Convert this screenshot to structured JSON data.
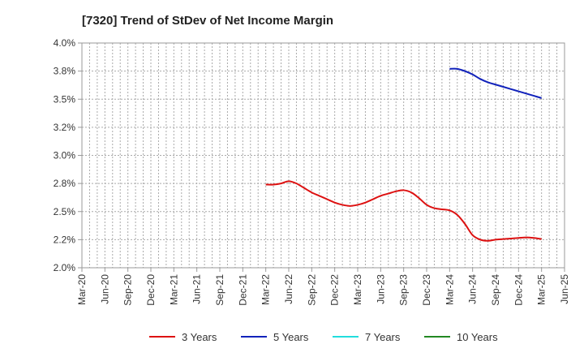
{
  "chart_data": {
    "type": "line",
    "title": "[7320]  Trend of StDev of Net Income Margin",
    "xlabel": "",
    "ylabel": "",
    "x_ticks": [
      "Mar-20",
      "Jun-20",
      "Sep-20",
      "Dec-20",
      "Mar-21",
      "Jun-21",
      "Sep-21",
      "Dec-21",
      "Mar-22",
      "Jun-22",
      "Sep-22",
      "Dec-22",
      "Mar-23",
      "Jun-23",
      "Sep-23",
      "Dec-23",
      "Mar-24",
      "Jun-24",
      "Sep-24",
      "Dec-24",
      "Mar-25",
      "Jun-25"
    ],
    "y_ticks": [
      "2.0%",
      "2.2%",
      "2.5%",
      "2.8%",
      "3.0%",
      "3.2%",
      "3.5%",
      "3.8%",
      "4.0%"
    ],
    "ylim": [
      2.0,
      4.0
    ],
    "grid": true,
    "legend_position": "bottom",
    "series": [
      {
        "name": "3 Years",
        "color": "#dd1111",
        "points": [
          [
            "Mar-22",
            2.74
          ],
          [
            "Apr-22",
            2.74
          ],
          [
            "May-22",
            2.75
          ],
          [
            "Jun-22",
            2.77
          ],
          [
            "Jul-22",
            2.75
          ],
          [
            "Aug-22",
            2.71
          ],
          [
            "Sep-22",
            2.67
          ],
          [
            "Oct-22",
            2.64
          ],
          [
            "Nov-22",
            2.61
          ],
          [
            "Dec-22",
            2.58
          ],
          [
            "Jan-23",
            2.56
          ],
          [
            "Feb-23",
            2.55
          ],
          [
            "Mar-23",
            2.56
          ],
          [
            "Apr-23",
            2.58
          ],
          [
            "May-23",
            2.61
          ],
          [
            "Jun-23",
            2.64
          ],
          [
            "Jul-23",
            2.66
          ],
          [
            "Aug-23",
            2.68
          ],
          [
            "Sep-23",
            2.69
          ],
          [
            "Oct-23",
            2.67
          ],
          [
            "Nov-23",
            2.62
          ],
          [
            "Dec-23",
            2.56
          ],
          [
            "Jan-24",
            2.53
          ],
          [
            "Feb-24",
            2.52
          ],
          [
            "Mar-24",
            2.51
          ],
          [
            "Apr-24",
            2.47
          ],
          [
            "May-24",
            2.39
          ],
          [
            "Jun-24",
            2.29
          ],
          [
            "Jul-24",
            2.25
          ],
          [
            "Aug-24",
            2.24
          ],
          [
            "Sep-24",
            2.25
          ],
          [
            "Oct-24",
            2.255
          ],
          [
            "Nov-24",
            2.26
          ],
          [
            "Dec-24",
            2.265
          ],
          [
            "Jan-25",
            2.27
          ],
          [
            "Feb-25",
            2.265
          ],
          [
            "Mar-25",
            2.255
          ]
        ]
      },
      {
        "name": "5 Years",
        "color": "#1122bb",
        "points": [
          [
            "Mar-24",
            3.77
          ],
          [
            "Apr-24",
            3.77
          ],
          [
            "May-24",
            3.75
          ],
          [
            "Jun-24",
            3.72
          ],
          [
            "Jul-24",
            3.68
          ],
          [
            "Aug-24",
            3.65
          ],
          [
            "Sep-24",
            3.63
          ],
          [
            "Oct-24",
            3.61
          ],
          [
            "Nov-24",
            3.59
          ],
          [
            "Dec-24",
            3.57
          ],
          [
            "Jan-25",
            3.55
          ],
          [
            "Feb-25",
            3.53
          ],
          [
            "Mar-25",
            3.51
          ]
        ]
      },
      {
        "name": "7 Years",
        "color": "#22dddd",
        "points": []
      },
      {
        "name": "10 Years",
        "color": "#228822",
        "points": []
      }
    ]
  }
}
